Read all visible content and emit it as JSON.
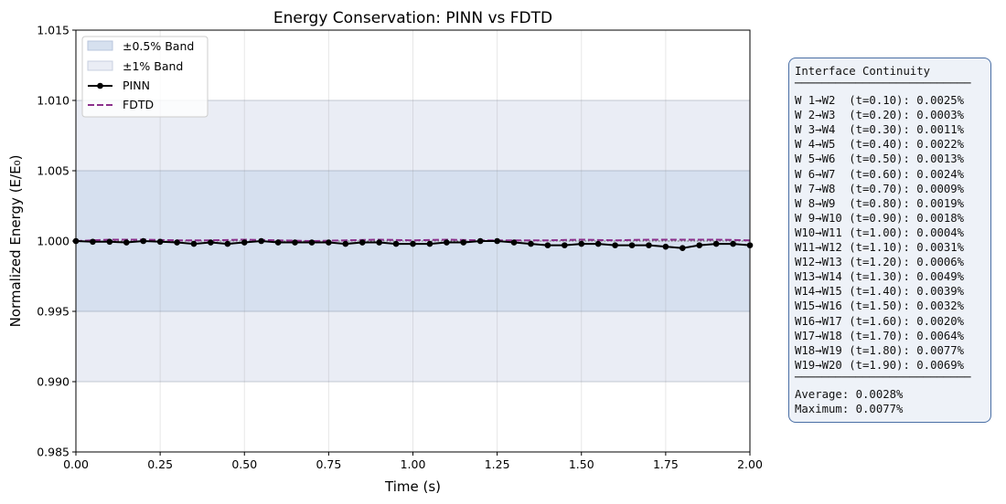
{
  "chart_data": {
    "type": "line",
    "title": "Energy Conservation: PINN vs FDTD",
    "xlabel": "Time (s)",
    "ylabel": "Normalized Energy (E/E₀)",
    "xlim": [
      0,
      2
    ],
    "ylim": [
      0.985,
      1.015
    ],
    "xticks": [
      "0.00",
      "0.25",
      "0.50",
      "0.75",
      "1.00",
      "1.25",
      "1.50",
      "1.75",
      "2.00"
    ],
    "yticks": [
      "0.985",
      "0.990",
      "0.995",
      "1.000",
      "1.005",
      "1.010",
      "1.015"
    ],
    "grid": true,
    "legend_placement": "top-left",
    "bands": [
      {
        "name": "±0.5% Band",
        "range": [
          0.995,
          1.005
        ],
        "color": "#b0c4de"
      },
      {
        "name": "±1% Band",
        "range": [
          0.99,
          1.01
        ],
        "color": "#d6dcec"
      }
    ],
    "reference_line": 1.0,
    "series": [
      {
        "name": "PINN",
        "color": "#000000",
        "style": "solid-markers",
        "x": [
          0,
          0.05,
          0.1,
          0.15,
          0.2,
          0.25,
          0.3,
          0.35,
          0.4,
          0.45,
          0.5,
          0.55,
          0.6,
          0.65,
          0.7,
          0.75,
          0.8,
          0.85,
          0.9,
          0.95,
          1.0,
          1.05,
          1.1,
          1.15,
          1.2,
          1.25,
          1.3,
          1.35,
          1.4,
          1.45,
          1.5,
          1.55,
          1.6,
          1.65,
          1.7,
          1.75,
          1.8,
          1.85,
          1.9,
          1.95,
          2.0
        ],
        "values": [
          1.0,
          0.99995,
          0.99995,
          0.9999,
          1.0,
          0.99995,
          0.9999,
          0.9998,
          0.9999,
          0.9998,
          0.9999,
          1.0,
          0.9999,
          0.9999,
          0.9999,
          0.9999,
          0.9998,
          0.9999,
          0.9999,
          0.9998,
          0.9998,
          0.9998,
          0.9999,
          0.9999,
          1.0,
          1.0,
          0.9999,
          0.9998,
          0.9997,
          0.9997,
          0.9998,
          0.9998,
          0.9997,
          0.9997,
          0.9997,
          0.9996,
          0.9995,
          0.9997,
          0.9998,
          0.9998,
          0.9997
        ]
      },
      {
        "name": "FDTD",
        "color": "#8b2f8b",
        "style": "dashed",
        "x": [
          0,
          0.1,
          0.2,
          0.3,
          0.4,
          0.5,
          0.6,
          0.7,
          0.8,
          0.9,
          1.0,
          1.1,
          1.2,
          1.3,
          1.4,
          1.5,
          1.6,
          1.7,
          1.8,
          1.9,
          2.0
        ],
        "values": [
          1.0,
          1.0001,
          1.0001,
          1.00005,
          1.00005,
          1.0001,
          1.00005,
          1.0,
          1.00005,
          1.0001,
          1.00005,
          1.0001,
          1.00005,
          1.00005,
          1.00005,
          1.0001,
          1.00005,
          1.0001,
          1.0001,
          1.0001,
          1.00005
        ]
      }
    ]
  },
  "info_box": {
    "title": "Interface Continuity",
    "rule": "──────────────────────────",
    "lines": [
      "W 1→W2  (t=0.10): 0.0025%",
      "W 2→W3  (t=0.20): 0.0003%",
      "W 3→W4  (t=0.30): 0.0011%",
      "W 4→W5  (t=0.40): 0.0022%",
      "W 5→W6  (t=0.50): 0.0013%",
      "W 6→W7  (t=0.60): 0.0024%",
      "W 7→W8  (t=0.70): 0.0009%",
      "W 8→W9  (t=0.80): 0.0019%",
      "W 9→W10 (t=0.90): 0.0018%",
      "W10→W11 (t=1.00): 0.0004%",
      "W11→W12 (t=1.10): 0.0031%",
      "W12→W13 (t=1.20): 0.0006%",
      "W13→W14 (t=1.30): 0.0049%",
      "W14→W15 (t=1.40): 0.0039%",
      "W15→W16 (t=1.50): 0.0032%",
      "W16→W17 (t=1.60): 0.0020%",
      "W17→W18 (t=1.70): 0.0064%",
      "W18→W19 (t=1.80): 0.0077%",
      "W19→W20 (t=1.90): 0.0069%"
    ],
    "average": "Average: 0.0028%",
    "maximum": "Maximum: 0.0077%"
  }
}
